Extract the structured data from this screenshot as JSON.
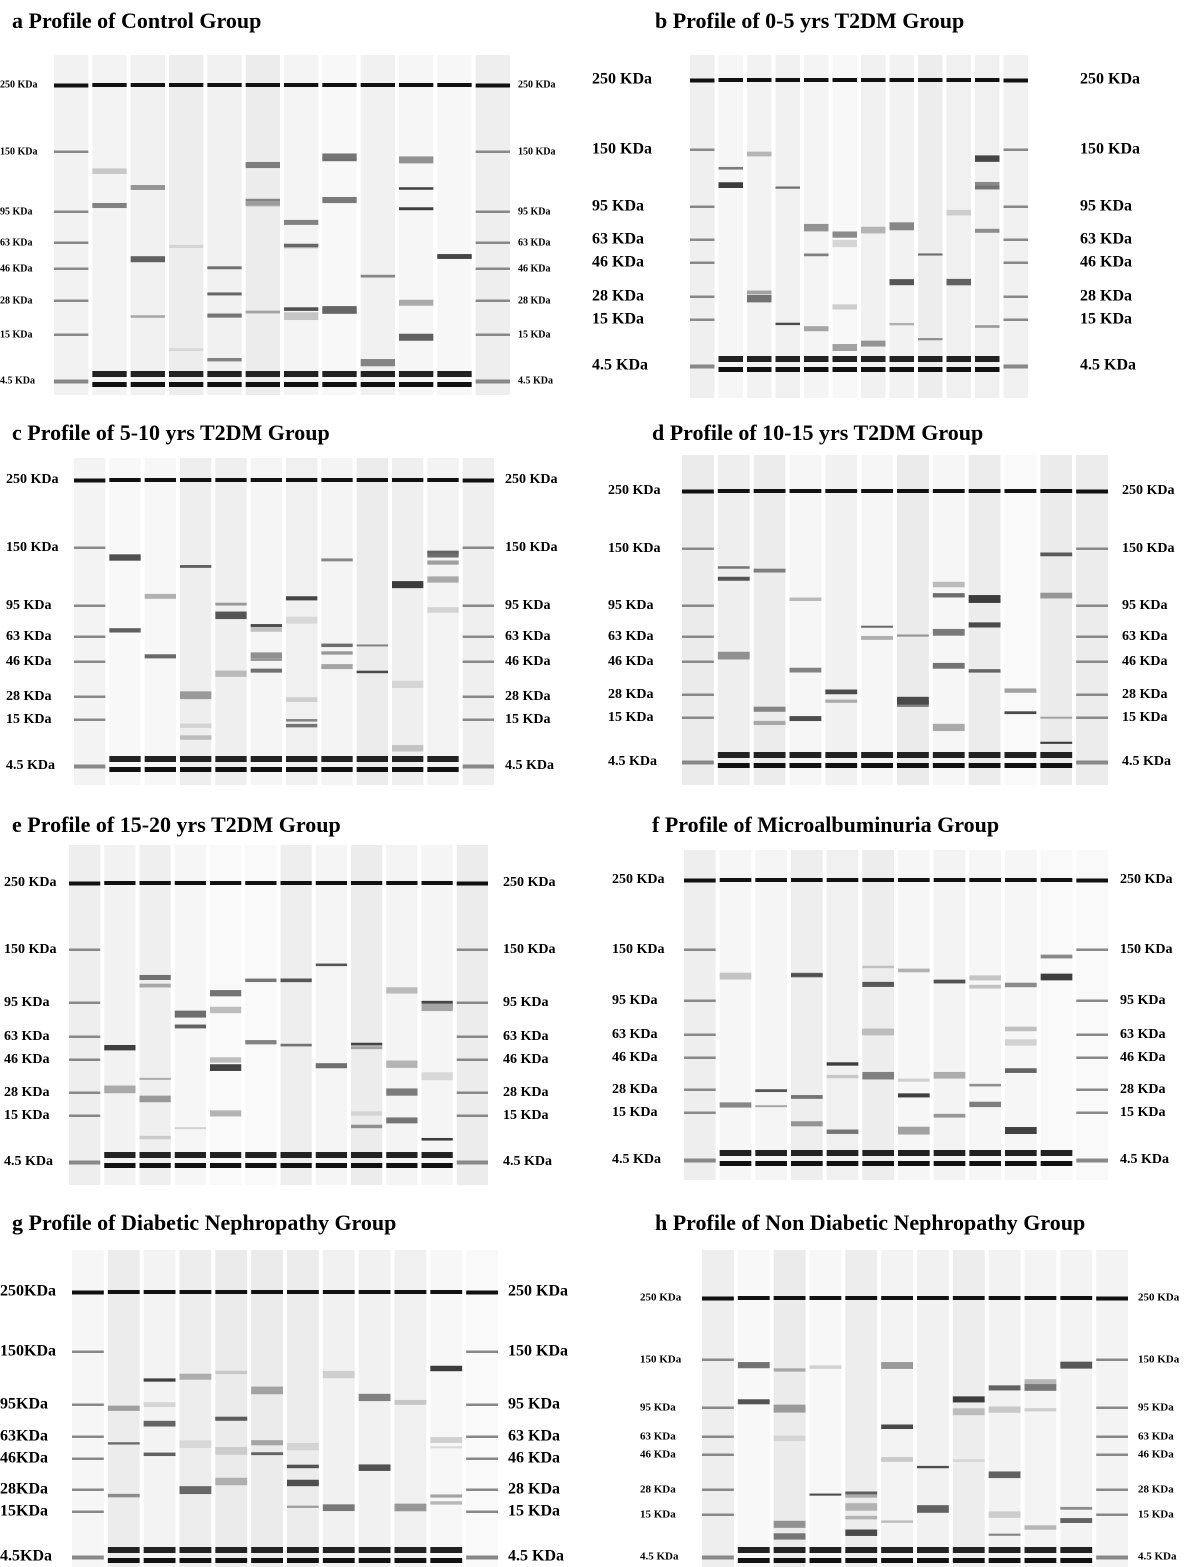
{
  "panels": [
    {
      "title": "a Profile of Control Group",
      "left_markers": [
        "250 KDa",
        "150 KDa",
        "95 KDa",
        "63 KDa",
        "46 KDa",
        "28 KDa",
        "15 KDa",
        "4.5 KDa"
      ],
      "right_markers": [
        "250 KDa",
        "150 KDa",
        "95 KDa",
        "63 KDa",
        "46 KDa",
        "28 KDa",
        "15 KDa",
        "4.5 KDa"
      ]
    },
    {
      "title": "b Profile of 0-5 yrs T2DM Group",
      "left_markers": [
        "250 KDa",
        "150 KDa",
        "95 KDa",
        "63 KDa",
        "46 KDa",
        "28 KDa",
        "15 KDa",
        "4.5 KDa"
      ],
      "right_markers": [
        "250 KDa",
        "150 KDa",
        "95 KDa",
        "63 KDa",
        "46 KDa",
        "28 KDa",
        "15 KDa",
        "4.5 KDa"
      ]
    },
    {
      "title": "c Profile of 5-10 yrs T2DM Group",
      "left_markers": [
        "250 KDa",
        "150 KDa",
        "95 KDa",
        "63 KDa",
        "46 KDa",
        "28 KDa",
        "15 KDa",
        "4.5 KDa"
      ],
      "right_markers": [
        "250 KDa",
        "150 KDa",
        "95 KDa",
        "63 KDa",
        "46 KDa",
        "28 KDa",
        "15 KDa",
        "4.5 KDa"
      ]
    },
    {
      "title": "d Profile of 10-15 yrs T2DM Group",
      "left_markers": [
        "250 KDa",
        "150 KDa",
        "95 KDa",
        "63 KDa",
        "46 KDa",
        "28 KDa",
        "15 KDa",
        "4.5 KDa"
      ],
      "right_markers": [
        "250 KDa",
        "150 KDa",
        "95 KDa",
        "63 KDa",
        "46 KDa",
        "28 KDa",
        "15 KDa",
        "4.5 KDa"
      ]
    },
    {
      "title": "e Profile of 15-20 yrs T2DM Group",
      "left_markers": [
        "250 KDa",
        "150 KDa",
        "95 KDa",
        "63 KDa",
        "46 KDa",
        "28 KDa",
        "15 KDa",
        "4.5 KDa"
      ],
      "right_markers": [
        "250 KDa",
        "150 KDa",
        "95 KDa",
        "63 KDa",
        "46 KDa",
        "28 KDa",
        "15 KDa",
        "4.5 KDa"
      ]
    },
    {
      "title": "f Profile of Microalbuminuria Group",
      "left_markers": [
        "250 KDa",
        "150 KDa",
        "95 KDa",
        "63 KDa",
        "46 KDa",
        "28 KDa",
        "15 KDa",
        "4.5 KDa"
      ],
      "right_markers": [
        "250 KDa",
        "150 KDa",
        "95 KDa",
        "63 KDa",
        "46 KDa",
        "28 KDa",
        "15 KDa",
        "4.5 KDa"
      ]
    },
    {
      "title": "g Profile of Diabetic Nephropathy Group",
      "left_markers": [
        "250KDa",
        "150KDa",
        "95KDa",
        "63KDa",
        "46KDa",
        "28KDa",
        "15KDa",
        "4.5KDa"
      ],
      "right_markers": [
        "250 KDa",
        "150 KDa",
        "95 KDa",
        "63 KDa",
        "46 KDa",
        "28 KDa",
        "15 KDa",
        "4.5 KDa"
      ]
    },
    {
      "title": "h Profile of Non Diabetic Nephropathy Group",
      "left_markers": [
        "250 KDa",
        "150 KDa",
        "95 KDa",
        "63 KDa",
        "46 KDa",
        "28 KDa",
        "15 KDa",
        "4.5 KDa"
      ],
      "right_markers": [
        "250 KDa",
        "150 KDa",
        "95 KDa",
        "63 KDa",
        "46 KDa",
        "28 KDa",
        "15 KDa",
        "4.5 KDa"
      ]
    }
  ]
}
